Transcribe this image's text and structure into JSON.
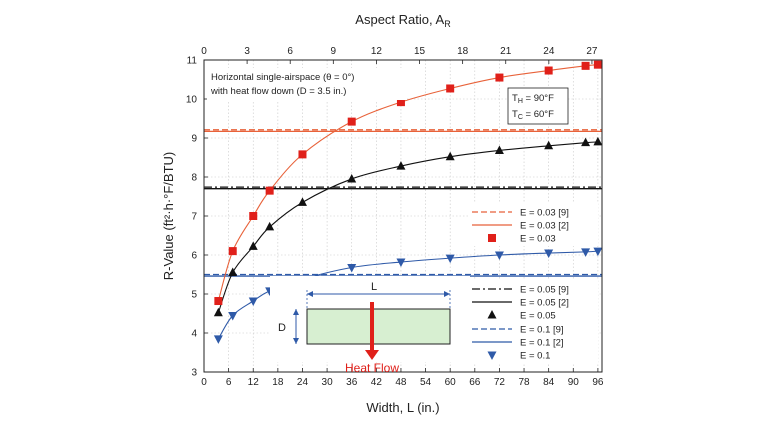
{
  "chart_data": {
    "type": "scatter",
    "xlabel": "Width, L (in.)",
    "x2label": "Aspect Ratio, A",
    "x2label_sub": "R",
    "ylabel": "R-Value (ft²·h·°F/BTU)",
    "xlim": [
      0,
      97
    ],
    "ylim": [
      3,
      11
    ],
    "x2lim": [
      0,
      27.7
    ],
    "grid": true,
    "legend_position": "right",
    "xticks": [
      "0",
      "6",
      "12",
      "18",
      "24",
      "30",
      "36",
      "42",
      "48",
      "54",
      "60",
      "66",
      "72",
      "78",
      "84",
      "90",
      "96"
    ],
    "yticks": [
      "3",
      "4",
      "5",
      "6",
      "7",
      "8",
      "9",
      "10",
      "11"
    ],
    "x2ticks": [
      "0",
      "3",
      "6",
      "9",
      "12",
      "15",
      "18",
      "21",
      "24",
      "27"
    ],
    "annotations": {
      "case_line1": "Horizontal single-airspace (θ = 0°)",
      "case_line2": "with heat flow down (D = 3.5 in.)",
      "th": "T",
      "th_sub": "H",
      "th_val": " = 90°F",
      "tc": "T",
      "tc_sub": "C",
      "tc_val": " = 60°F",
      "width_symbol": "L",
      "depth_symbol": "D",
      "heat_flow": "Heat Flow"
    },
    "series": [
      {
        "name": "E = 0.03 [9]",
        "kind": "hline",
        "style": "dashed",
        "color": "#e8623a",
        "y": 9.21
      },
      {
        "name": "E = 0.03 [2]",
        "kind": "hline",
        "style": "solid",
        "color": "#e8623a",
        "y": 9.17
      },
      {
        "name": "E = 0.03",
        "kind": "points",
        "marker": "square",
        "color": "#e0201a",
        "x": [
          3.5,
          7,
          12,
          16,
          24,
          36,
          48,
          60,
          72,
          84,
          93,
          96
        ],
        "y": [
          4.82,
          6.1,
          7.0,
          7.65,
          8.58,
          9.42,
          9.92,
          10.27,
          10.55,
          10.73,
          10.85,
          10.88
        ]
      },
      {
        "name": "E = 0.05 [9]",
        "kind": "hline",
        "style": "dashdot",
        "color": "#111111",
        "y": 7.74
      },
      {
        "name": "E = 0.05 [2]",
        "kind": "hline",
        "style": "solid",
        "color": "#111111",
        "y": 7.7
      },
      {
        "name": "E = 0.05",
        "kind": "points",
        "marker": "triangle-up",
        "color": "#111111",
        "x": [
          3.5,
          7,
          12,
          16,
          24,
          36,
          48,
          60,
          72,
          84,
          93,
          96
        ],
        "y": [
          4.52,
          5.55,
          6.22,
          6.72,
          7.35,
          7.95,
          8.28,
          8.52,
          8.68,
          8.8,
          8.88,
          8.9
        ]
      },
      {
        "name": "E = 0.1 [9]",
        "kind": "hline",
        "style": "dashed",
        "color": "#2f5aa8",
        "y": 5.5
      },
      {
        "name": "E = 0.1 [2]",
        "kind": "hline",
        "style": "solid",
        "color": "#2f5aa8",
        "y": 5.46
      },
      {
        "name": "E = 0.1",
        "kind": "points",
        "marker": "triangle-down",
        "color": "#2f5aa8",
        "x": [
          3.5,
          7,
          12,
          16,
          24,
          36,
          48,
          60,
          72,
          84,
          93,
          96
        ],
        "y": [
          3.85,
          4.45,
          4.82,
          5.08,
          5.38,
          5.68,
          5.82,
          5.92,
          6.0,
          6.05,
          6.08,
          6.1
        ]
      }
    ],
    "fits": [
      {
        "color": "#e8623a",
        "x": [
          3.5,
          7,
          12,
          16,
          24,
          36,
          48,
          60,
          72,
          84,
          93,
          96
        ],
        "y": [
          4.82,
          6.1,
          7.0,
          7.65,
          8.58,
          9.42,
          9.92,
          10.27,
          10.55,
          10.73,
          10.85,
          10.88
        ]
      },
      {
        "color": "#111111",
        "x": [
          3.5,
          7,
          12,
          16,
          24,
          36,
          48,
          60,
          72,
          84,
          93,
          96
        ],
        "y": [
          4.52,
          5.55,
          6.22,
          6.72,
          7.35,
          7.95,
          8.28,
          8.52,
          8.68,
          8.8,
          8.88,
          8.9
        ]
      },
      {
        "color": "#2f5aa8",
        "x": [
          3.5,
          7,
          12,
          16,
          24,
          36,
          48,
          60,
          72,
          84,
          93,
          96
        ],
        "y": [
          3.85,
          4.45,
          4.82,
          5.08,
          5.38,
          5.68,
          5.82,
          5.92,
          6.0,
          6.05,
          6.08,
          6.1
        ]
      }
    ]
  }
}
